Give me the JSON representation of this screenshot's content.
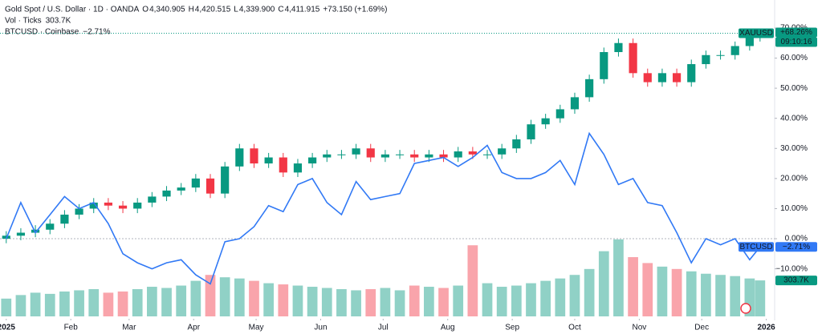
{
  "chart_data": {
    "type": "candlestick",
    "title": "Gold Spot / U.S. Dollar · 1D · OANDA",
    "ohlc_header": {
      "labels": [
        "O",
        "H",
        "L",
        "C"
      ],
      "values": [
        "4,340.905",
        "4,420.515",
        "4,339.900",
        "4,411.915"
      ],
      "change": "+73.150 (+1.69%)"
    },
    "symbol_tag": {
      "name": "XAUUSD",
      "value_label": "+68.26%",
      "countdown": "09:10:16"
    },
    "up_color": "#089981",
    "down_color": "#f23645",
    "x": [
      0,
      7,
      14,
      21,
      28,
      35,
      42,
      49,
      56,
      63,
      70,
      77,
      84,
      91,
      98,
      105,
      112,
      119,
      126,
      133,
      140,
      147,
      154,
      161,
      168,
      175,
      182,
      189,
      196,
      203,
      210,
      217,
      224,
      231,
      238,
      245,
      252,
      259,
      266,
      273,
      280,
      287,
      294,
      301,
      308,
      315,
      322,
      329,
      336,
      343,
      350,
      357,
      362
    ],
    "open": [
      0,
      1,
      2,
      3,
      5,
      8,
      10,
      12,
      11,
      10,
      12,
      14,
      16,
      17,
      20,
      15,
      24,
      30,
      25,
      27,
      22,
      25,
      27,
      28,
      28,
      30,
      27,
      28,
      28,
      27,
      28,
      27,
      29,
      28,
      28,
      30,
      33,
      38,
      40,
      43,
      47,
      53,
      62,
      65,
      55,
      52,
      55,
      52,
      58,
      61,
      61,
      64,
      67
    ],
    "high": [
      2.5,
      3.5,
      4.5,
      6.5,
      9.5,
      11.5,
      13.5,
      13.5,
      12.5,
      13.5,
      15.5,
      17.5,
      18.5,
      21.5,
      21.5,
      25.5,
      31.5,
      31.5,
      28.5,
      28.5,
      26.5,
      28.5,
      29.5,
      29.5,
      31.5,
      31.5,
      29.5,
      29.5,
      29.5,
      29.5,
      29.5,
      30.5,
      30.5,
      29.5,
      31.5,
      34.5,
      39.5,
      41.5,
      44.5,
      48.5,
      54.5,
      63.5,
      66.5,
      66.5,
      56.5,
      56.5,
      56.5,
      59.5,
      62.5,
      62.5,
      65.5,
      68.5,
      69.5
    ],
    "low": [
      -1.5,
      -0.5,
      0.5,
      1.5,
      3.5,
      6.5,
      8.5,
      9.5,
      8.5,
      8.5,
      10.5,
      12.5,
      14.5,
      15.5,
      13.5,
      13.5,
      22.5,
      23.5,
      23.5,
      20.5,
      20.5,
      23.5,
      25.5,
      26.5,
      26.5,
      25.5,
      25.5,
      26.5,
      25.5,
      25.5,
      25.5,
      25.5,
      26.5,
      26.5,
      26.5,
      28.5,
      31.5,
      36.5,
      38.5,
      41.5,
      45.5,
      51.5,
      60.5,
      53.5,
      50.5,
      50.5,
      50.5,
      50.5,
      56.5,
      59.5,
      59.5,
      62.5,
      65.5
    ],
    "close": [
      1,
      2,
      3,
      5,
      8,
      10,
      12,
      11,
      10,
      12,
      14,
      16,
      17,
      20,
      15,
      24,
      30,
      25,
      27,
      22,
      25,
      27,
      28,
      28,
      30,
      27,
      28,
      28,
      27,
      28,
      27,
      29,
      28,
      28,
      30,
      33,
      38,
      40,
      43,
      47,
      53,
      62,
      65,
      55,
      52,
      55,
      52,
      58,
      61,
      61,
      64,
      67,
      68.26
    ],
    "series": [
      {
        "name": "BTCUSD · Coinbase",
        "color": "#3179f5",
        "value_label": "−2.71%",
        "values": [
          0,
          12,
          2,
          8,
          14,
          10,
          12,
          5,
          -5,
          -8,
          -10,
          -8,
          -7,
          -12,
          -15,
          -1,
          0,
          4,
          11,
          9,
          18,
          20,
          12,
          8,
          19,
          13,
          14,
          15,
          25,
          26,
          27,
          24,
          27,
          31,
          22,
          20,
          20,
          22,
          26,
          18,
          35,
          28,
          18,
          20,
          12,
          11,
          2,
          -8,
          0,
          -2,
          0,
          -7,
          -2.71
        ]
      }
    ],
    "series_tag": "BTCUSD",
    "volume": {
      "name": "Vol · Ticks",
      "last_label": "303.7K",
      "y2lim": [
        0,
        2670
      ],
      "values": [
        150,
        180,
        200,
        190,
        210,
        220,
        230,
        200,
        210,
        230,
        250,
        240,
        260,
        300,
        350,
        330,
        320,
        300,
        280,
        270,
        260,
        250,
        240,
        230,
        220,
        230,
        240,
        220,
        260,
        250,
        240,
        260,
        600,
        280,
        250,
        260,
        280,
        300,
        320,
        350,
        400,
        550,
        650,
        500,
        450,
        420,
        400,
        380,
        360,
        350,
        340,
        320,
        303.7
      ]
    },
    "xlim": [
      -3,
      369
    ],
    "xticks": [
      {
        "value": 0,
        "label": "2025"
      },
      {
        "value": 31,
        "label": "Feb"
      },
      {
        "value": 59,
        "label": "Mar"
      },
      {
        "value": 90,
        "label": "Apr"
      },
      {
        "value": 120,
        "label": "May"
      },
      {
        "value": 151,
        "label": "Jun"
      },
      {
        "value": 181,
        "label": "Jul"
      },
      {
        "value": 212,
        "label": "Aug"
      },
      {
        "value": 243,
        "label": "Sep"
      },
      {
        "value": 273,
        "label": "Oct"
      },
      {
        "value": 304,
        "label": "Nov"
      },
      {
        "value": 334,
        "label": "Dec"
      },
      {
        "value": 365,
        "label": "2026"
      }
    ],
    "ylim": [
      -25.8,
      79.3
    ],
    "yticks": [
      {
        "value": -10,
        "label": "−10.00%"
      },
      {
        "value": 0,
        "label": "0.00%"
      },
      {
        "value": 10,
        "label": "10.00%"
      },
      {
        "value": 20,
        "label": "20.00%"
      },
      {
        "value": 30,
        "label": "30.00%"
      },
      {
        "value": 40,
        "label": "40.00%"
      },
      {
        "value": 50,
        "label": "50.00%"
      },
      {
        "value": 60,
        "label": "60.00%"
      },
      {
        "value": 70,
        "label": "70.00%"
      }
    ],
    "grid": false
  }
}
